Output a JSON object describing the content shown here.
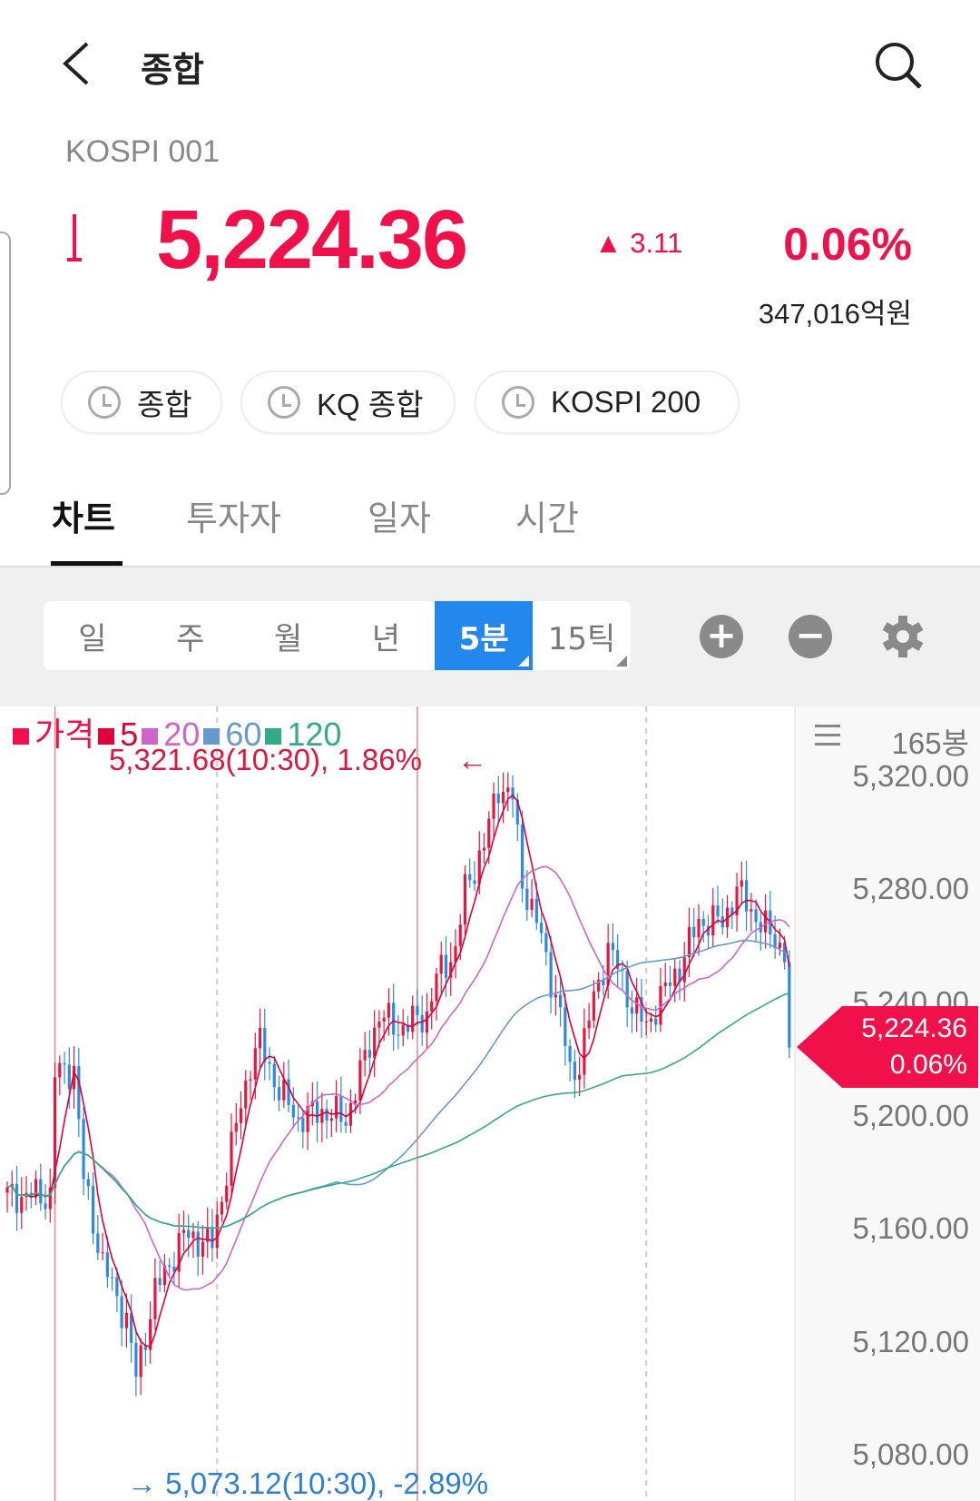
{
  "header": {
    "title": "종합",
    "back_icon": "chevron-left-icon",
    "search_icon": "search-icon"
  },
  "quote": {
    "code": "KOSPI 001",
    "direction_icon": "arrow-down-icon",
    "price": "5,224.36",
    "change": "▲ 3.11",
    "change_pct": "0.06%",
    "amount": "347,016억원",
    "color": "#f0114a"
  },
  "chips": [
    {
      "label": "종합"
    },
    {
      "label": "KQ 종합"
    },
    {
      "label": "KOSPI 200"
    }
  ],
  "tabs": [
    {
      "label": "차트",
      "active": true
    },
    {
      "label": "투자자"
    },
    {
      "label": "일자"
    },
    {
      "label": "시간"
    }
  ],
  "periods": [
    {
      "label": "일"
    },
    {
      "label": "주"
    },
    {
      "label": "월"
    },
    {
      "label": "년"
    },
    {
      "label": "5분",
      "active": true
    },
    {
      "label": "15틱"
    }
  ],
  "controls": {
    "zoom_in": "+",
    "zoom_out": "−",
    "settings_icon": "gear-icon",
    "menu_icon": "menu-icon"
  },
  "chart_data": {
    "type": "candlestick",
    "bar_count_label": "165봉",
    "legend": [
      {
        "label": "가격",
        "color": "#f0114a"
      },
      {
        "label": "5",
        "color": "#e0003a"
      },
      {
        "label": "20",
        "color": "#cc66cc"
      },
      {
        "label": "60",
        "color": "#6699cc"
      },
      {
        "label": "120",
        "color": "#33aa88"
      }
    ],
    "up_color": "#e8173f",
    "down_color": "#2d8ae0",
    "ylim": [
      5064,
      5345
    ],
    "y_ticks": [
      "5,320.00",
      "5,280.00",
      "5,240.00",
      "5,200.00",
      "5,160.00",
      "5,120.00",
      "5,080.00"
    ],
    "y_tick_values": [
      5320,
      5280,
      5240,
      5200,
      5160,
      5120,
      5080
    ],
    "candles": 165,
    "close_trace": [
      [
        0,
        5172
      ],
      [
        9,
        5172
      ],
      [
        10,
        5215
      ],
      [
        14,
        5217
      ],
      [
        16,
        5178
      ],
      [
        20,
        5148
      ],
      [
        25,
        5128
      ],
      [
        27,
        5108
      ],
      [
        31,
        5138
      ],
      [
        37,
        5158
      ],
      [
        43,
        5155
      ],
      [
        47,
        5189
      ],
      [
        51,
        5219
      ],
      [
        53,
        5226
      ],
      [
        57,
        5209
      ],
      [
        61,
        5199
      ],
      [
        66,
        5202
      ],
      [
        71,
        5199
      ],
      [
        74,
        5215
      ],
      [
        78,
        5236
      ],
      [
        82,
        5231
      ],
      [
        88,
        5236
      ],
      [
        90,
        5249
      ],
      [
        94,
        5259
      ],
      [
        96,
        5280
      ],
      [
        100,
        5296
      ],
      [
        103,
        5317
      ],
      [
        106,
        5313
      ],
      [
        108,
        5283
      ],
      [
        111,
        5269
      ],
      [
        114,
        5249
      ],
      [
        116,
        5236
      ],
      [
        118,
        5215
      ],
      [
        120,
        5219
      ],
      [
        123,
        5242
      ],
      [
        126,
        5259
      ],
      [
        128,
        5253
      ],
      [
        131,
        5239
      ],
      [
        134,
        5232
      ],
      [
        137,
        5242
      ],
      [
        141,
        5253
      ],
      [
        145,
        5269
      ],
      [
        150,
        5269
      ],
      [
        153,
        5280
      ],
      [
        156,
        5273
      ],
      [
        160,
        5264
      ],
      [
        163,
        5259
      ],
      [
        164,
        5224.36
      ]
    ],
    "high_label": "5,321.68(10:30), 1.86%",
    "low_label": "5,073.12(10:30), -2.89%",
    "high_value": 5321.68,
    "low_value": 5073.12,
    "last_price": "5,224.36",
    "last_pct": "0.06%",
    "session_markers_red": [
      10,
      86
    ],
    "session_markers_dashed": [
      44,
      134
    ]
  }
}
